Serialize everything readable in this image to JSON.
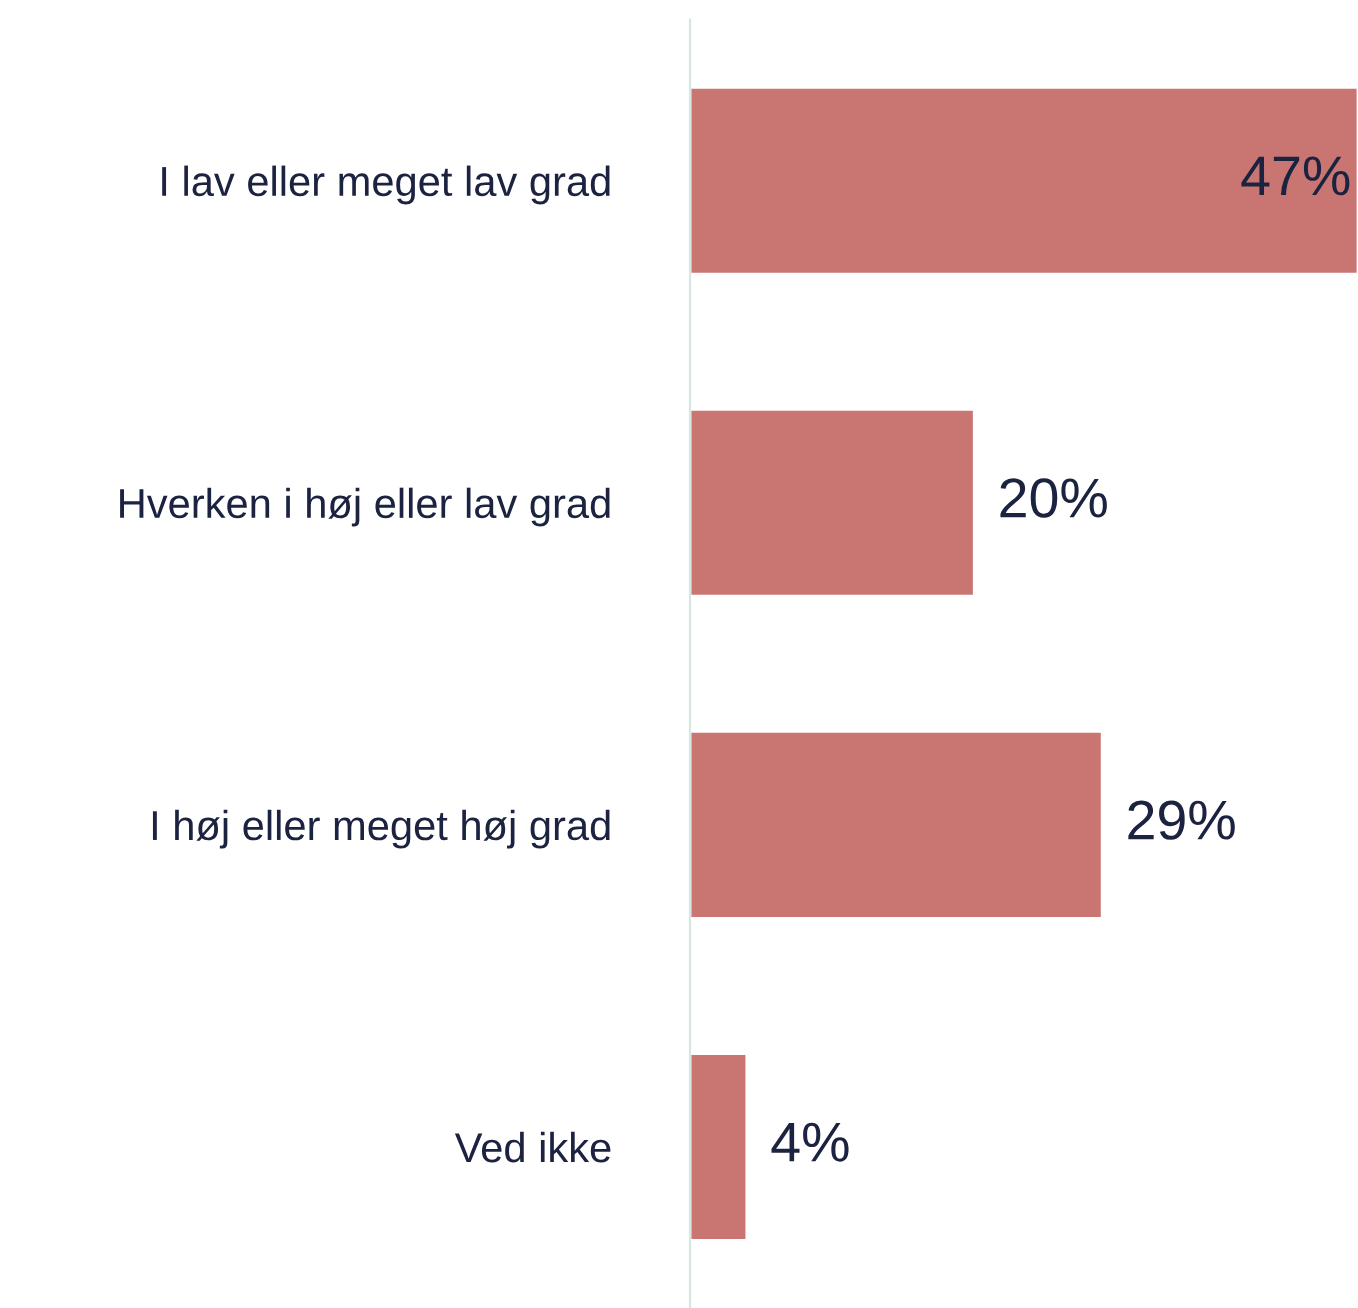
{
  "chart_data": {
    "type": "bar",
    "orientation": "horizontal",
    "categories": [
      "I lav eller meget lav grad",
      "Hverken i høj eller lav grad",
      "I høj eller meget høj grad",
      "Ved ikke"
    ],
    "values": [
      47,
      20,
      29,
      4
    ],
    "value_labels": [
      "47%",
      "20%",
      "29%",
      "4%"
    ],
    "color": "#c97673",
    "xlim": [
      0,
      47
    ],
    "grid": false,
    "legend": false
  }
}
